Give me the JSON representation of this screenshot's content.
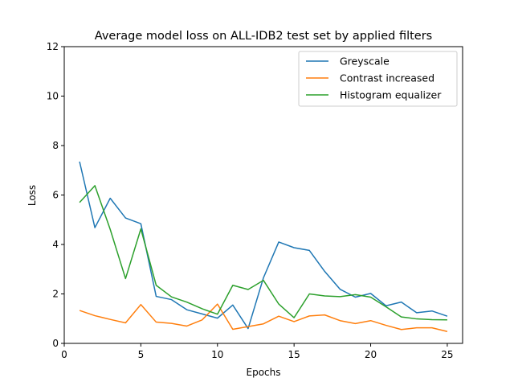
{
  "chart_data": {
    "type": "line",
    "title": "Average model loss on ALL-IDB2 test set by applied filters",
    "xlabel": "Epochs",
    "ylabel": "Loss",
    "xlim": [
      0,
      26
    ],
    "ylim": [
      0,
      12
    ],
    "xticks": [
      0,
      5,
      10,
      15,
      20,
      25
    ],
    "yticks": [
      0,
      2,
      4,
      6,
      8,
      10,
      12
    ],
    "grid": false,
    "legend_position": "top-right",
    "x": [
      1,
      2,
      3,
      4,
      5,
      6,
      7,
      8,
      9,
      10,
      11,
      12,
      13,
      14,
      15,
      16,
      17,
      18,
      19,
      20,
      21,
      22,
      23,
      24,
      25
    ],
    "series": [
      {
        "name": "Greyscale",
        "color": "#1f77b4",
        "values": [
          7.35,
          4.68,
          5.87,
          5.07,
          4.84,
          1.9,
          1.77,
          1.36,
          1.19,
          1.02,
          1.55,
          0.6,
          2.65,
          4.1,
          3.87,
          3.76,
          2.91,
          2.19,
          1.87,
          2.02,
          1.52,
          1.67,
          1.24,
          1.31,
          1.1
        ]
      },
      {
        "name": "Contrast increased",
        "color": "#ff7f0e",
        "values": [
          1.33,
          1.12,
          0.97,
          0.83,
          1.57,
          0.86,
          0.81,
          0.7,
          0.95,
          1.59,
          0.57,
          0.68,
          0.79,
          1.1,
          0.88,
          1.11,
          1.15,
          0.92,
          0.8,
          0.92,
          0.73,
          0.56,
          0.63,
          0.63,
          0.48
        ]
      },
      {
        "name": "Histogram equalizer",
        "color": "#2ca02c",
        "values": [
          5.7,
          6.38,
          4.61,
          2.62,
          4.63,
          2.35,
          1.88,
          1.67,
          1.4,
          1.18,
          2.35,
          2.18,
          2.55,
          1.59,
          1.04,
          2.0,
          1.92,
          1.89,
          1.97,
          1.87,
          1.48,
          1.07,
          0.99,
          0.96,
          0.95
        ]
      }
    ]
  }
}
